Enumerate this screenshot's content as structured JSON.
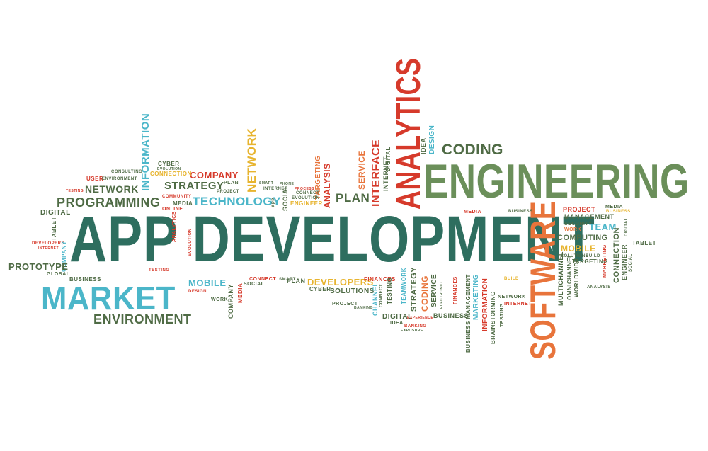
{
  "colors": {
    "teal": "#2e6e5f",
    "green": "#6b8f5a",
    "blue": "#4bb6c9",
    "red": "#d63a2b",
    "orange": "#e8743b",
    "gold": "#e7b42f",
    "gray": "#6e6e6e",
    "darkgreen": "#4f6b45"
  },
  "words": {
    "app_development": "APP DEVELOPMENT",
    "engineering": "ENGINEERING",
    "coding": "CODING",
    "analytics": "ANALYTICS",
    "software": "SOFTWARE",
    "market": "MARKET",
    "environment": "ENVIRONMENT",
    "programming": "PROGRAMMING",
    "technology": "TECHNOLOGY",
    "strategy": "STRATEGY",
    "network": "NETWORK",
    "company": "COMPANY",
    "information": "INFORMATION",
    "plan": "PLAN",
    "interface": "INTERFACE",
    "service": "SERVICE",
    "internet": "INTERNET",
    "digital": "DIGITAL",
    "design": "DESIGN",
    "idea": "IDEA",
    "team": "TEAM",
    "mobile": "MOBILE",
    "computing": "COMPUTING",
    "management": "MANAGEMENT",
    "project": "PROJECT",
    "media": "MEDIA",
    "business": "BUSINESS",
    "prototype": "PROTOTYPE",
    "global": "GLOBAL",
    "developers": "DEVELOPERS",
    "solutions": "SOLUTIONS",
    "finances": "FINANCES",
    "channel": "CHANNEL",
    "brainstorming": "BRAINSTORMING",
    "multichannel": "MULTICHANNEL",
    "omnichannel": "OMNICHANNEL",
    "worldwide": "WORLDWIDE",
    "connection": "CONNECTION",
    "engineer": "ENGINEER",
    "tablet": "TABLET",
    "social": "SOCIAL",
    "targeting": "TARGETING",
    "evolution": "EVOLUTION",
    "online": "ONLINE",
    "community": "COMMUNITY",
    "cyber": "CYBER",
    "user": "USER",
    "consulting": "CONSULTING",
    "testing": "TESTING",
    "marketing": "MARKETING",
    "analysis": "ANALYSIS",
    "security": "SECURITY",
    "work": "WORK",
    "build": "BUILD",
    "teamwork": "TEAMWORK",
    "connect": "CONNECT",
    "smart": "SMART",
    "phone": "PHONE",
    "process": "PROCESS",
    "banking": "BANKING",
    "exposure": "EXPOSURE",
    "experience": "EXPERIENCE",
    "electronic": "ELECTRONIC",
    "business_management": "BUSINESS MANAGEMENT",
    "app": "APP",
    "finances_small": "FINANCES",
    "idea_small": "IDEA"
  }
}
